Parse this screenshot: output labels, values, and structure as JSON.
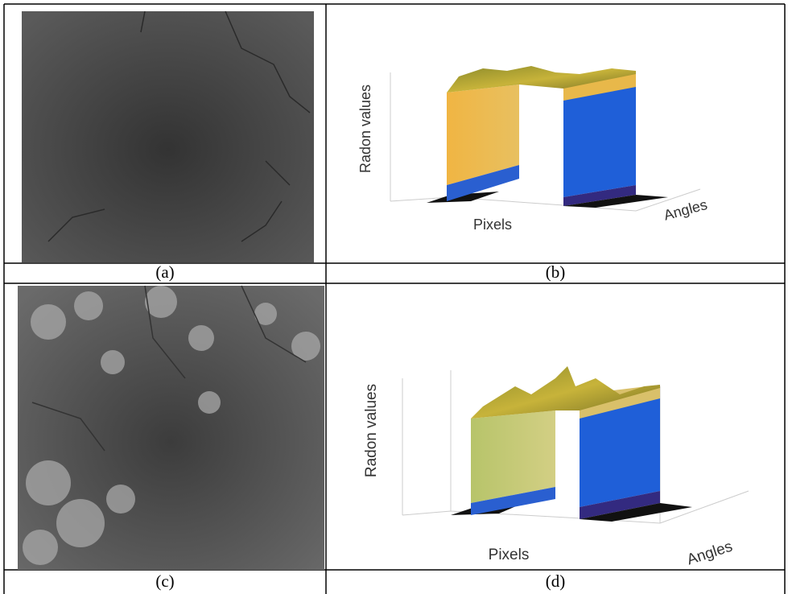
{
  "panels": [
    {
      "caption": "(a)"
    },
    {
      "caption": "(b)",
      "plot": {
        "z_label": "Radon values",
        "x_label": "Pixels",
        "y_label": "Angles"
      }
    },
    {
      "caption": "(c)"
    },
    {
      "caption": "(d)",
      "plot": {
        "z_label": "Radon values",
        "x_label": "Pixels",
        "y_label": "Angles"
      }
    }
  ]
}
